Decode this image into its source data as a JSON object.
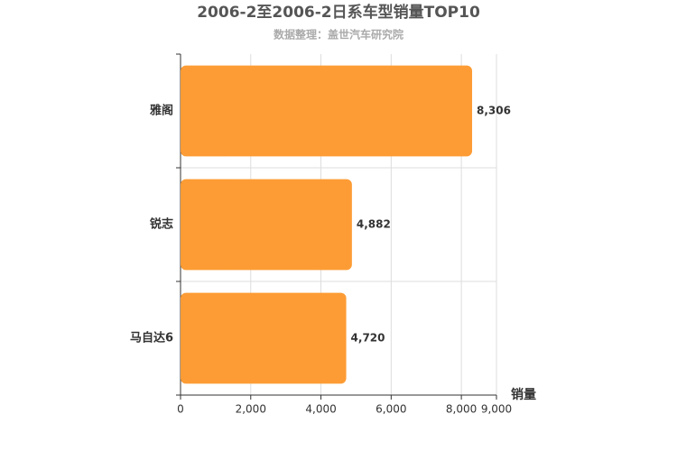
{
  "chart_data": {
    "type": "bar",
    "orientation": "horizontal",
    "title": "2006-2至2006-2日系车型销量TOP10",
    "subtitle": "数据整理：盖世汽车研究院",
    "categories": [
      "雅阁",
      "锐志",
      "马自达6"
    ],
    "values": [
      8306,
      4882,
      4720
    ],
    "value_labels": [
      "8,306",
      "4,882",
      "4,720"
    ],
    "color": "#fd9c35",
    "x_label": "销量",
    "xlim": [
      0,
      9000
    ],
    "xticks": [
      0,
      {
        "value": 2000,
        "label": "2,000"
      },
      {
        "value": 4000,
        "label": "4,000"
      },
      {
        "value": 6000,
        "label": "6,000"
      },
      {
        "value": 8000,
        "label": "8,000"
      },
      {
        "value": 9000,
        "label": "9,000"
      }
    ],
    "grid": true
  }
}
